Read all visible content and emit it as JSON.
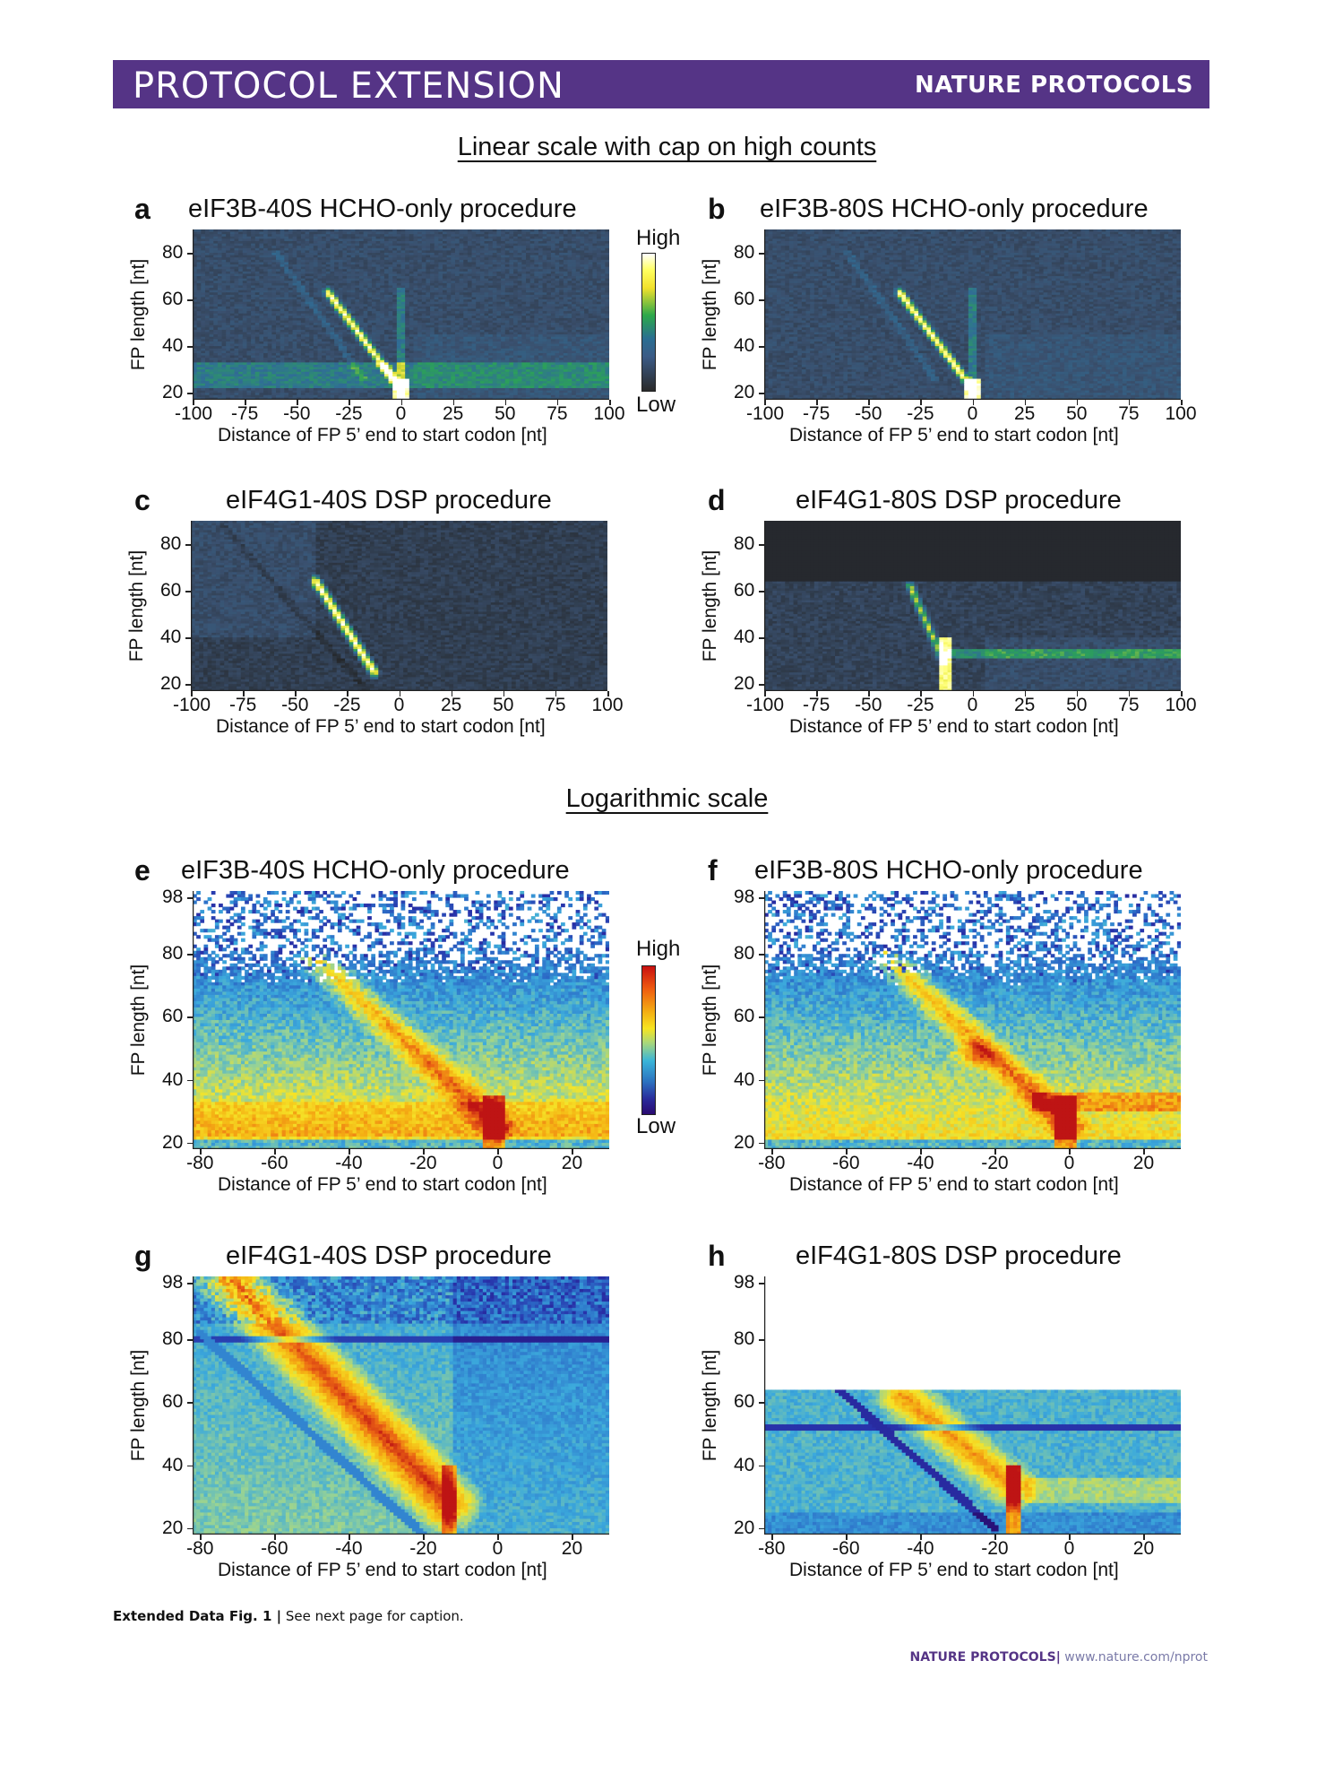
{
  "header": {
    "left": "PROTOCOL EXTENSION",
    "right": "NATURE PROTOCOLS"
  },
  "sections": {
    "linear": "Linear scale with cap on high counts",
    "log": "Logarithmic scale"
  },
  "colorbar": {
    "high": "High",
    "low": "Low"
  },
  "axis_text": {
    "ylabel": "FP length [nt]",
    "xlabel": "Distance of FP 5’ end to start codon [nt]"
  },
  "footer": {
    "caption_bold": "Extended Data Fig. 1 |",
    "caption_rest": " See next page for caption.",
    "journal": "NATURE PROTOCOLS",
    "sep": "|",
    "url": "www.nature.com/nprot"
  },
  "colors": {
    "banner": "#553486",
    "heatmap_bg": "#1c1c1c"
  },
  "chart_data": [
    {
      "id": "a",
      "type": "heatmap",
      "scale": "linear-capped",
      "title": "eIF3B-40S HCHO-only procedure",
      "x_ticks": [
        -100,
        -75,
        -50,
        -25,
        0,
        25,
        50,
        75,
        100
      ],
      "y_ticks": [
        20,
        40,
        60,
        80
      ],
      "xlim": [
        -100,
        100
      ],
      "ylim": [
        17,
        90
      ],
      "features": [
        "diagonal band from (-35,62) to (-2,24)",
        "horizontal band near 25-30 nt",
        "hot spots near (0,22)"
      ]
    },
    {
      "id": "b",
      "type": "heatmap",
      "scale": "linear-capped",
      "title": "eIF3B-80S HCHO-only procedure",
      "x_ticks": [
        -100,
        -75,
        -50,
        -25,
        0,
        25,
        50,
        75,
        100
      ],
      "y_ticks": [
        20,
        40,
        60,
        80
      ],
      "xlim": [
        -100,
        100
      ],
      "ylim": [
        17,
        90
      ],
      "features": [
        "diagonal band from (-35,62) to (-2,24)",
        "vertical line at 0"
      ]
    },
    {
      "id": "c",
      "type": "heatmap",
      "scale": "linear-capped",
      "title": "eIF4G1-40S DSP procedure",
      "x_ticks": [
        -100,
        -75,
        -50,
        -25,
        0,
        25,
        50,
        75,
        100
      ],
      "y_ticks": [
        20,
        40,
        60,
        80
      ],
      "xlim": [
        -100,
        100
      ],
      "ylim": [
        17,
        90
      ],
      "features": [
        "diagonal band from (-40,62) to (-12,25)"
      ]
    },
    {
      "id": "d",
      "type": "heatmap",
      "scale": "linear-capped",
      "title": "eIF4G1-80S DSP procedure",
      "x_ticks": [
        -100,
        -75,
        -50,
        -25,
        0,
        25,
        50,
        75,
        100
      ],
      "y_ticks": [
        20,
        40,
        60,
        80
      ],
      "xlim": [
        -100,
        100
      ],
      "ylim": [
        17,
        90
      ],
      "features": [
        "data limited to lengths below 64 nt",
        "hot spot near (-13,30)",
        "horizontal band near 33 nt"
      ]
    },
    {
      "id": "e",
      "type": "heatmap",
      "scale": "log",
      "title": "eIF3B-40S HCHO-only procedure",
      "x_ticks": [
        -80,
        -60,
        -40,
        -20,
        0,
        20
      ],
      "y_ticks": [
        20,
        40,
        60,
        80,
        98
      ],
      "xlim": [
        -82,
        30
      ],
      "ylim": [
        18,
        100
      ],
      "features": [
        "diagonal band from (-50,80) to (0,25)",
        "horizontal band near 25-30 nt",
        "hot spot near (-2,25)"
      ]
    },
    {
      "id": "f",
      "type": "heatmap",
      "scale": "log",
      "title": "eIF3B-80S HCHO-only procedure",
      "x_ticks": [
        -80,
        -60,
        -40,
        -20,
        0,
        20
      ],
      "y_ticks": [
        20,
        40,
        60,
        80,
        98
      ],
      "xlim": [
        -82,
        30
      ],
      "ylim": [
        18,
        100
      ],
      "features": [
        "diagonal band from (-50,80) to (0,25)",
        "hot spot near (-25,48)",
        "horizontal band near 33 nt"
      ]
    },
    {
      "id": "g",
      "type": "heatmap",
      "scale": "log",
      "title": "eIF4G1-40S DSP procedure",
      "x_ticks": [
        -80,
        -60,
        -40,
        -20,
        0,
        20
      ],
      "y_ticks": [
        20,
        40,
        60,
        80,
        98
      ],
      "xlim": [
        -82,
        30
      ],
      "ylim": [
        18,
        100
      ],
      "features": [
        "diagonal band from (-70,98) to (-13,28)",
        "dark line at 80 nt",
        "hot spot near (-13,30)"
      ]
    },
    {
      "id": "h",
      "type": "heatmap",
      "scale": "log",
      "title": "eIF4G1-80S DSP procedure",
      "x_ticks": [
        -80,
        -60,
        -40,
        -20,
        0,
        20
      ],
      "y_ticks": [
        20,
        40,
        60,
        80,
        98
      ],
      "xlim": [
        -82,
        30
      ],
      "ylim": [
        18,
        100
      ],
      "features": [
        "data limited to lengths below 64 nt",
        "dark line near 52 nt",
        "hot spot near (-15,30)"
      ]
    }
  ]
}
